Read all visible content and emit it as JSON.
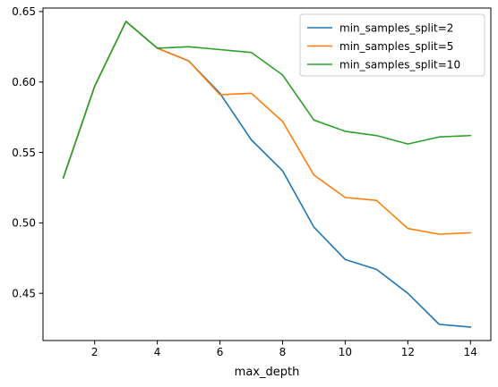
{
  "chart_data": {
    "type": "line",
    "title": "",
    "xlabel": "max_depth",
    "ylabel": "",
    "xlim": [
      0.35,
      14.65
    ],
    "ylim": [
      0.4165,
      0.6525
    ],
    "grid": false,
    "legend_position": "top-right",
    "x": [
      1,
      2,
      3,
      4,
      5,
      6,
      7,
      8,
      9,
      10,
      11,
      12,
      13,
      14
    ],
    "x_ticks": [
      2,
      4,
      6,
      8,
      10,
      12,
      14
    ],
    "x_tick_labels": [
      "2",
      "4",
      "6",
      "8",
      "10",
      "12",
      "14"
    ],
    "y_ticks": [
      0.45,
      0.5,
      0.55,
      0.6,
      0.65
    ],
    "y_tick_labels": [
      "0.45",
      "0.50",
      "0.55",
      "0.60",
      "0.65"
    ],
    "series": [
      {
        "name": "min_samples_split=2",
        "color": "#1f77b4",
        "values": [
          0.532,
          0.597,
          0.643,
          0.624,
          0.615,
          0.592,
          0.559,
          0.537,
          0.497,
          0.474,
          0.467,
          0.45,
          0.428,
          0.426
        ]
      },
      {
        "name": "min_samples_split=5",
        "color": "#ff7f0e",
        "values": [
          0.532,
          0.597,
          0.643,
          0.624,
          0.615,
          0.591,
          0.592,
          0.572,
          0.534,
          0.518,
          0.516,
          0.496,
          0.492,
          0.493
        ]
      },
      {
        "name": "min_samples_split=10",
        "color": "#2ca02c",
        "values": [
          0.532,
          0.597,
          0.643,
          0.624,
          0.625,
          0.623,
          0.621,
          0.605,
          0.573,
          0.565,
          0.562,
          0.556,
          0.561,
          0.562
        ]
      }
    ]
  }
}
